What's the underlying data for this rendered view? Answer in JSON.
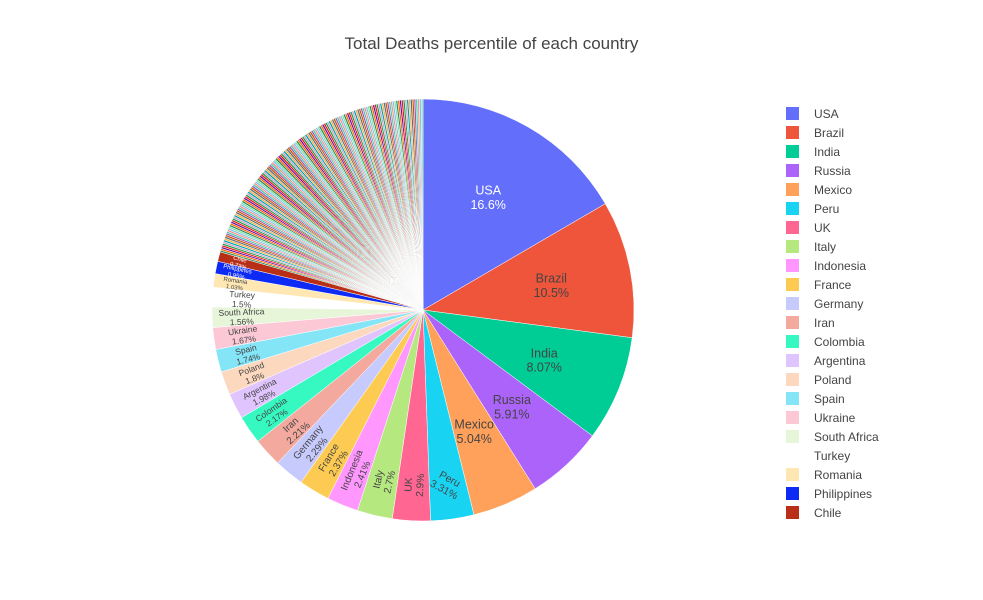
{
  "chart_data": {
    "type": "pie",
    "title": "Total Deaths percentile of each country",
    "direction": "clockwise",
    "start": "top",
    "legend_position": "right",
    "labels": [
      "USA",
      "Brazil",
      "India",
      "Russia",
      "Mexico",
      "Peru",
      "UK",
      "Italy",
      "Indonesia",
      "France",
      "Germany",
      "Iran",
      "Colombia",
      "Argentina",
      "Poland",
      "Spain",
      "Ukraine",
      "South Africa",
      "Turkey",
      "Romania",
      "Philippines",
      "Chile"
    ],
    "values": [
      16.6,
      10.5,
      8.07,
      5.91,
      5.04,
      3.31,
      2.9,
      2.7,
      2.41,
      2.37,
      2.29,
      2.21,
      2.17,
      1.98,
      1.8,
      1.74,
      1.67,
      1.56,
      1.5,
      1.03,
      0.95,
      0.73
    ],
    "value_labels": [
      "16.6%",
      "10.5%",
      "8.07%",
      "5.91%",
      "5.04%",
      "3.31%",
      "2.9%",
      "2.7%",
      "2.41%",
      "2.37%",
      "2.29%",
      "2.21%",
      "2.17%",
      "1.98%",
      "1.8%",
      "1.74%",
      "1.67%",
      "1.56%",
      "1.5%",
      "1.03%",
      "0.95%",
      "0.73%"
    ],
    "colors": [
      "#636efa",
      "#EF553B",
      "#00cc96",
      "#ab63fa",
      "#FFA15A",
      "#19d3f3",
      "#FF6692",
      "#B6E880",
      "#FF97FF",
      "#FECB52",
      "#C6CAFD",
      "#F4A99E",
      "#36F8C1",
      "#E0C4FD",
      "#FCD8BF",
      "#84E5F7",
      "#FCC8D6",
      "#E7F5D8",
      "#FFFFFF",
      "#FFE7B3",
      "#0D2BF5",
      "#B82E17"
    ],
    "remaining_colors": [
      "#2E8B57",
      "#FF6600",
      "#6A0DAD",
      "#E81C1C",
      "#1F9E4A",
      "#C8A2C8",
      "#00A0B0",
      "#F5B041",
      "#5D6D7E",
      "#D35400",
      "#9B59B6",
      "#48C9B0",
      "#F1948A",
      "#85C1E9",
      "#82E0AA"
    ]
  }
}
